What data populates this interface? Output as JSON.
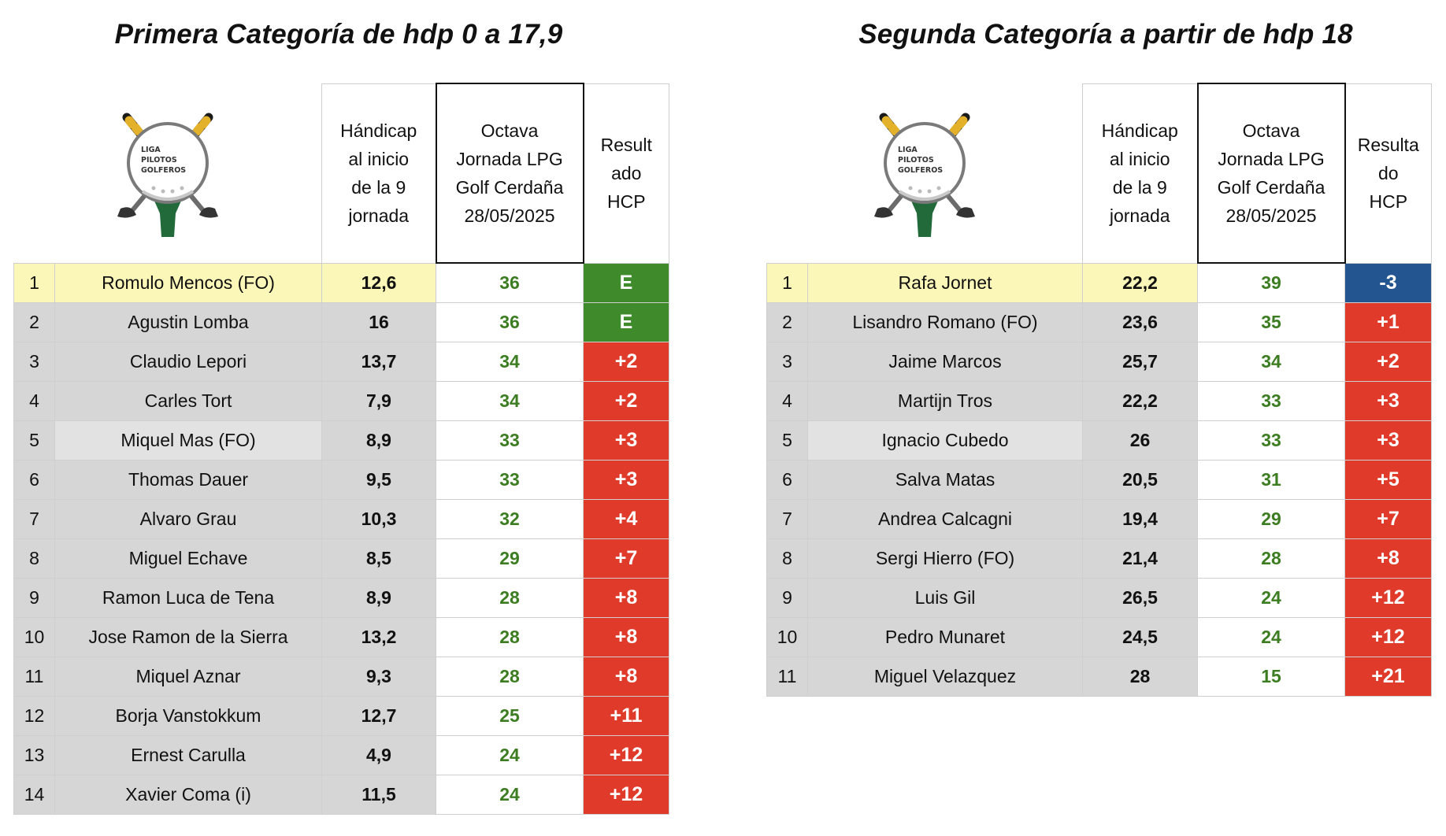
{
  "colors": {
    "even": "#3f8a2b",
    "over": "#e03a2b",
    "under": "#235590",
    "score_text": "#3d7d21",
    "highlight": "#fbf7b8",
    "gray": "#d6d6d6"
  },
  "logo": {
    "line1": "LIGA",
    "line2": "PILOTOS",
    "line3": "GOLFEROS"
  },
  "left": {
    "title": "Primera Categoría de hdp 0 a 17,9",
    "headers": {
      "handicap": [
        "Hándicap",
        "al inicio",
        "de la 9",
        "jornada"
      ],
      "octava": [
        "Octava",
        "Jornada LPG",
        "Golf Cerdaña",
        "28/05/2025"
      ],
      "resultado": [
        "Result",
        "ado",
        "HCP"
      ]
    },
    "rows": [
      {
        "pos": "1",
        "name": "Romulo Mencos (FO)",
        "hcp": "12,6",
        "score": "36",
        "res": "E",
        "kind": "even"
      },
      {
        "pos": "2",
        "name": "Agustin Lomba",
        "hcp": "16",
        "score": "36",
        "res": "E",
        "kind": "even"
      },
      {
        "pos": "3",
        "name": "Claudio Lepori",
        "hcp": "13,7",
        "score": "34",
        "res": "+2",
        "kind": "over"
      },
      {
        "pos": "4",
        "name": "Carles Tort",
        "hcp": "7,9",
        "score": "34",
        "res": "+2",
        "kind": "over"
      },
      {
        "pos": "5",
        "name": "Miquel Mas (FO)",
        "hcp": "8,9",
        "score": "33",
        "res": "+3",
        "kind": "over"
      },
      {
        "pos": "6",
        "name": "Thomas Dauer",
        "hcp": "9,5",
        "score": "33",
        "res": "+3",
        "kind": "over"
      },
      {
        "pos": "7",
        "name": "Alvaro Grau",
        "hcp": "10,3",
        "score": "32",
        "res": "+4",
        "kind": "over"
      },
      {
        "pos": "8",
        "name": "Miguel Echave",
        "hcp": "8,5",
        "score": "29",
        "res": "+7",
        "kind": "over"
      },
      {
        "pos": "9",
        "name": "Ramon Luca de Tena",
        "hcp": "8,9",
        "score": "28",
        "res": "+8",
        "kind": "over"
      },
      {
        "pos": "10",
        "name": "Jose Ramon de la Sierra",
        "hcp": "13,2",
        "score": "28",
        "res": "+8",
        "kind": "over"
      },
      {
        "pos": "11",
        "name": "Miquel Aznar",
        "hcp": "9,3",
        "score": "28",
        "res": "+8",
        "kind": "over"
      },
      {
        "pos": "12",
        "name": "Borja Vanstokkum",
        "hcp": "12,7",
        "score": "25",
        "res": "+11",
        "kind": "over"
      },
      {
        "pos": "13",
        "name": "Ernest Carulla",
        "hcp": "4,9",
        "score": "24",
        "res": "+12",
        "kind": "over"
      },
      {
        "pos": "14",
        "name": "Xavier Coma (i)",
        "hcp": "11,5",
        "score": "24",
        "res": "+12",
        "kind": "over"
      }
    ]
  },
  "right": {
    "title": "Segunda Categoría a partir de hdp 18",
    "headers": {
      "handicap": [
        "Hándicap",
        "al inicio",
        "de la 9",
        "jornada"
      ],
      "octava": [
        "Octava",
        "Jornada LPG",
        "Golf Cerdaña",
        "28/05/2025"
      ],
      "resultado": [
        "Resulta",
        "do",
        "HCP"
      ]
    },
    "rows": [
      {
        "pos": "1",
        "name": "Rafa Jornet",
        "hcp": "22,2",
        "score": "39",
        "res": "-3",
        "kind": "under"
      },
      {
        "pos": "2",
        "name": "Lisandro Romano (FO)",
        "hcp": "23,6",
        "score": "35",
        "res": "+1",
        "kind": "over"
      },
      {
        "pos": "3",
        "name": "Jaime Marcos",
        "hcp": "25,7",
        "score": "34",
        "res": "+2",
        "kind": "over"
      },
      {
        "pos": "4",
        "name": "Martijn Tros",
        "hcp": "22,2",
        "score": "33",
        "res": "+3",
        "kind": "over"
      },
      {
        "pos": "5",
        "name": "Ignacio Cubedo",
        "hcp": "26",
        "score": "33",
        "res": "+3",
        "kind": "over"
      },
      {
        "pos": "6",
        "name": "Salva Matas",
        "hcp": "20,5",
        "score": "31",
        "res": "+5",
        "kind": "over"
      },
      {
        "pos": "7",
        "name": "Andrea Calcagni",
        "hcp": "19,4",
        "score": "29",
        "res": "+7",
        "kind": "over"
      },
      {
        "pos": "8",
        "name": "Sergi Hierro (FO)",
        "hcp": "21,4",
        "score": "28",
        "res": "+8",
        "kind": "over"
      },
      {
        "pos": "9",
        "name": "Luis Gil",
        "hcp": "26,5",
        "score": "24",
        "res": "+12",
        "kind": "over"
      },
      {
        "pos": "10",
        "name": "Pedro Munaret",
        "hcp": "24,5",
        "score": "24",
        "res": "+12",
        "kind": "over"
      },
      {
        "pos": "11",
        "name": "Miguel Velazquez",
        "hcp": "28",
        "score": "15",
        "res": "+21",
        "kind": "over"
      }
    ]
  }
}
